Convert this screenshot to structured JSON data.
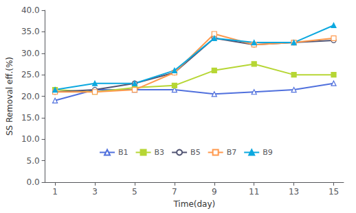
{
  "chart_data": {
    "type": "line",
    "x_label": "Time(day)",
    "y_label": "SS Removal eff.(%)",
    "x": [
      1,
      3,
      5,
      7,
      9,
      11,
      13,
      15
    ],
    "series": [
      {
        "name": "B1",
        "marker": "triangle-open",
        "values": [
          19.0,
          21.5,
          21.5,
          21.5,
          20.5,
          21.0,
          21.5,
          23.0
        ]
      },
      {
        "name": "B3",
        "marker": "square",
        "values": [
          21.5,
          21.0,
          22.0,
          22.5,
          26.0,
          27.5,
          25.0,
          25.0
        ]
      },
      {
        "name": "B5",
        "marker": "circle-open",
        "values": [
          21.0,
          21.5,
          23.0,
          25.5,
          33.5,
          32.0,
          32.5,
          33.0
        ]
      },
      {
        "name": "B7",
        "marker": "square-open",
        "values": [
          21.0,
          21.0,
          21.5,
          25.5,
          34.5,
          32.0,
          32.5,
          33.5
        ]
      },
      {
        "name": "B9",
        "marker": "triangle",
        "values": [
          21.5,
          23.0,
          23.0,
          26.0,
          33.5,
          32.5,
          32.5,
          36.5
        ]
      }
    ],
    "xlim": [
      0.5,
      15.5
    ],
    "xticks": [
      1,
      3,
      5,
      7,
      9,
      11,
      13,
      15
    ],
    "ylim": [
      0.0,
      40.0
    ],
    "yticks": [
      {
        "value": 0.0,
        "label": "0.0"
      },
      {
        "value": 5.0,
        "label": "5.0"
      },
      {
        "value": 10.0,
        "label": "10.0"
      },
      {
        "value": 15.0,
        "label": "15.0"
      },
      {
        "value": 20.0,
        "label": "20.0"
      },
      {
        "value": 25.0,
        "label": "25.0"
      },
      {
        "value": 30.0,
        "label": "30.0"
      },
      {
        "value": 35.0,
        "label": "35.0"
      },
      {
        "value": 40.0,
        "label": "40.0"
      }
    ],
    "grid": false,
    "legend": "lower left"
  }
}
